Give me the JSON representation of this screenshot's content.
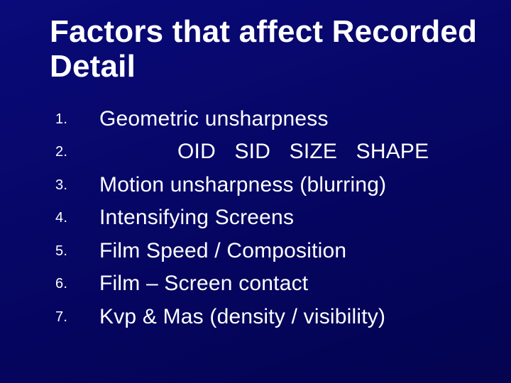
{
  "slide": {
    "background_color": "#060666",
    "text_color": "#ffffff",
    "title": "Factors that affect Recorded Detail",
    "title_fontsize": 44,
    "title_fontweight": 700,
    "body_fontsize": 30,
    "number_fontsize": 20,
    "font_family": "Tahoma, Verdana, Arial, sans-serif",
    "items": [
      {
        "text": "Geometric unsharpness",
        "indented": false
      },
      {
        "text": "OID   SID   SIZE   SHAPE",
        "indented": true
      },
      {
        "text": "Motion unsharpness (blurring)",
        "indented": false
      },
      {
        "text": "Intensifying Screens",
        "indented": false
      },
      {
        "text": "Film Speed / Composition",
        "indented": false
      },
      {
        "text": "Film – Screen contact",
        "indented": false
      },
      {
        "text": "Kvp   & Mas   (density / visibility)",
        "indented": false
      }
    ]
  }
}
